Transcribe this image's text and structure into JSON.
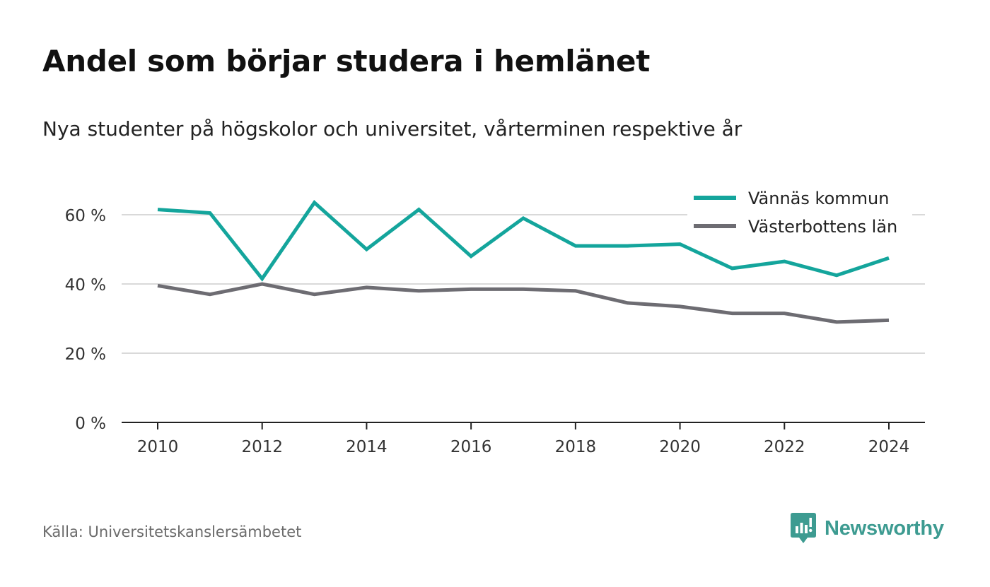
{
  "colors": {
    "accent": "#14a59c",
    "secondary": "#6d6c72",
    "brand": "#3d9b91"
  },
  "header": {
    "title": "Andel som börjar studera i hemlänet",
    "subtitle": "Nya studenter på högskolor och universitet, vårterminen respektive år"
  },
  "footer": {
    "source": "Källa: Universitetskanslersämbetet",
    "brand_name": "Newsworthy",
    "brand_icon": "newsworthy-logo-icon"
  },
  "chart_data": {
    "type": "line",
    "title": "Andel som börjar studera i hemlänet",
    "subtitle": "Nya studenter på högskolor och universitet, vårterminen respektive år",
    "xlabel": "",
    "ylabel": "",
    "x": [
      2010,
      2011,
      2012,
      2013,
      2014,
      2015,
      2016,
      2017,
      2018,
      2019,
      2020,
      2021,
      2022,
      2023,
      2024
    ],
    "xticks": [
      "2010",
      "2012",
      "2014",
      "2016",
      "2018",
      "2020",
      "2022",
      "2024"
    ],
    "yticks": [
      "0 %",
      "20 %",
      "40 %",
      "60 %"
    ],
    "ylim": [
      0,
      70
    ],
    "grid": true,
    "legend_position": "top-right",
    "series": [
      {
        "name": "Vännäs kommun",
        "color": "#14a59c",
        "values": [
          61.5,
          60.5,
          41.5,
          63.5,
          50.0,
          61.5,
          48.0,
          59.0,
          51.0,
          51.0,
          51.5,
          44.5,
          46.5,
          42.5,
          47.5
        ]
      },
      {
        "name": "Västerbottens län",
        "color": "#6d6c72",
        "values": [
          39.5,
          37.0,
          40.0,
          37.0,
          39.0,
          38.0,
          38.5,
          38.5,
          38.0,
          34.5,
          33.5,
          31.5,
          31.5,
          29.0,
          29.5
        ]
      }
    ]
  }
}
